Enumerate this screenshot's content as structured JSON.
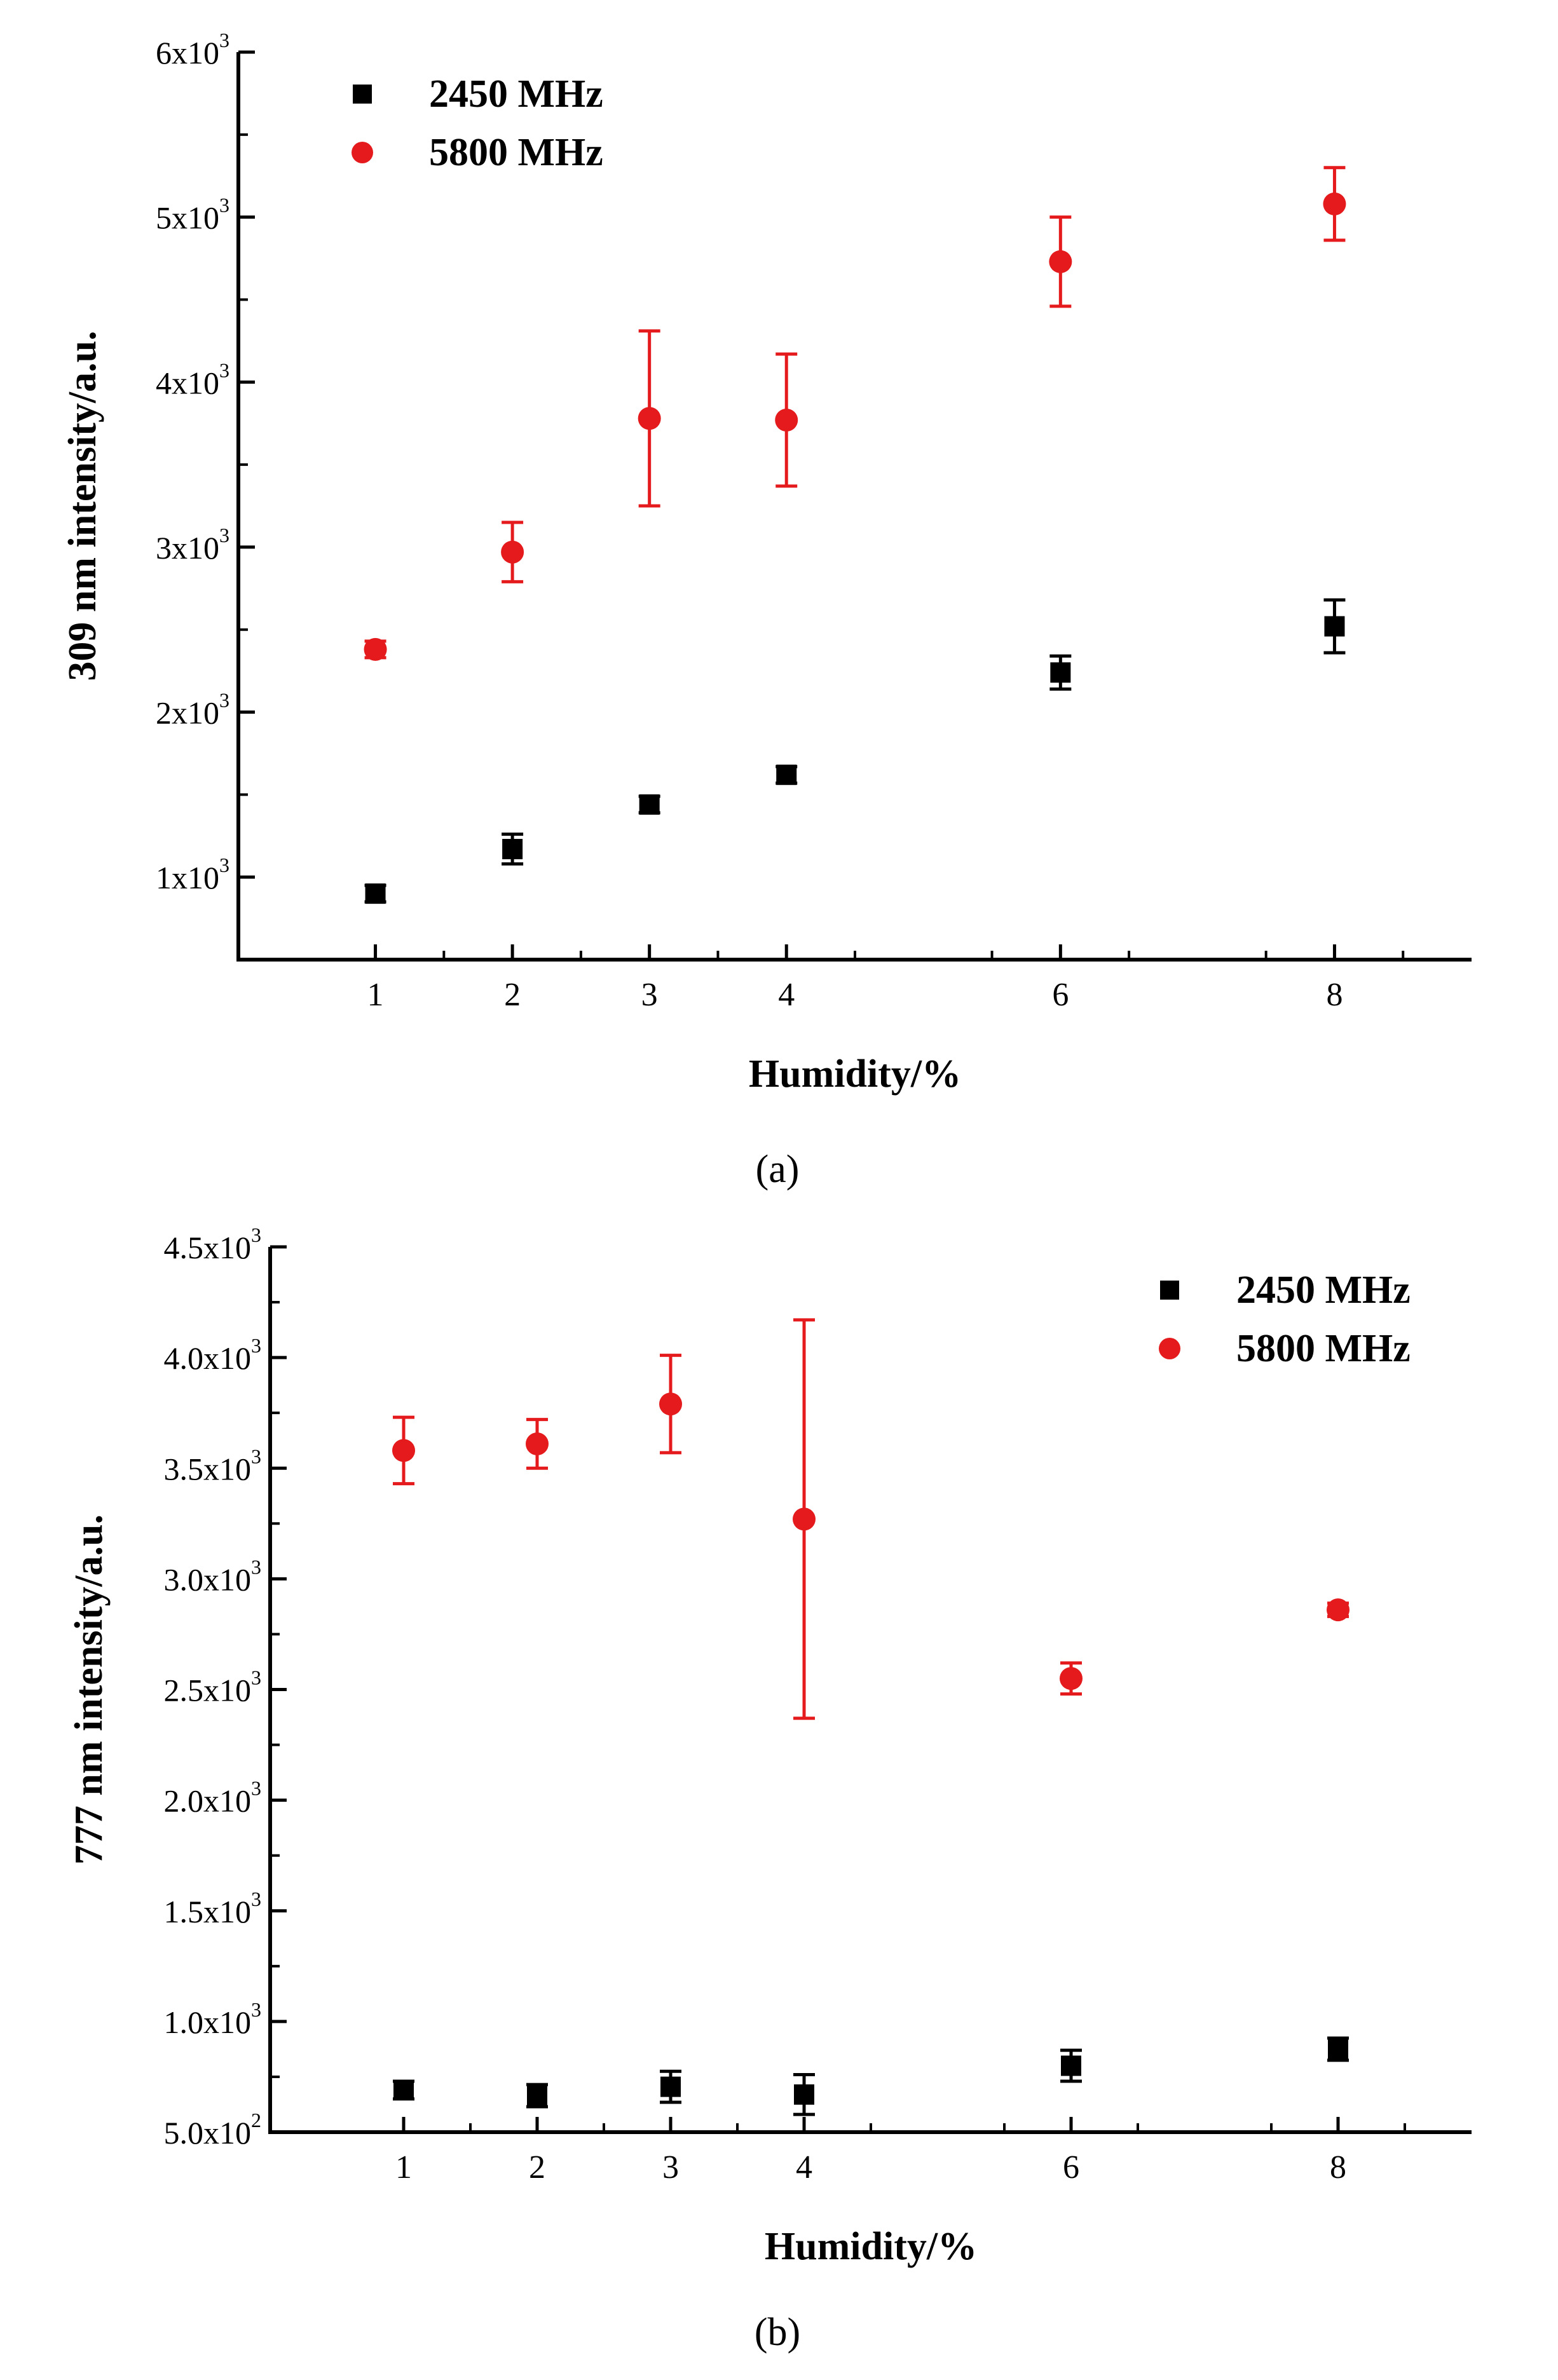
{
  "figure": {
    "panel_a_caption": "(a)",
    "panel_b_caption": "(b)"
  },
  "colors": {
    "series_2450": "#000000",
    "series_5800": "#e41a1c",
    "axis": "#000000"
  },
  "chart_data": [
    {
      "panel": "a",
      "type": "scatter",
      "title": "",
      "xlabel": "Humidity/%",
      "ylabel": "309 nm intensity/a.u.",
      "xlim": [
        0,
        9
      ],
      "ylim": [
        500,
        6000
      ],
      "x_ticks": [
        1,
        2,
        3,
        4,
        6,
        8
      ],
      "y_ticks": [
        {
          "value": 1000,
          "mantissa": "1",
          "exp": "3"
        },
        {
          "value": 2000,
          "mantissa": "2",
          "exp": "3"
        },
        {
          "value": 3000,
          "mantissa": "3",
          "exp": "3"
        },
        {
          "value": 4000,
          "mantissa": "4",
          "exp": "3"
        },
        {
          "value": 5000,
          "mantissa": "5",
          "exp": "3"
        },
        {
          "value": 6000,
          "mantissa": "6",
          "exp": "3"
        }
      ],
      "legend_position": "top-left",
      "series": [
        {
          "name": "2450 MHz",
          "marker": "square",
          "color": "#000000",
          "x": [
            1,
            2,
            3,
            4,
            6,
            8
          ],
          "y": [
            900,
            1170,
            1440,
            1620,
            2240,
            2520
          ],
          "err": [
            50,
            90,
            50,
            50,
            100,
            160
          ]
        },
        {
          "name": "5800 MHz",
          "marker": "circle",
          "color": "#e41a1c",
          "x": [
            1,
            2,
            3,
            4,
            6,
            8
          ],
          "y": [
            2380,
            2970,
            3780,
            3770,
            4730,
            5080
          ],
          "err": [
            50,
            180,
            530,
            400,
            270,
            220
          ]
        }
      ]
    },
    {
      "panel": "b",
      "type": "scatter",
      "title": "",
      "xlabel": "Humidity/%",
      "ylabel": "777 nm intensity/a.u.",
      "xlim": [
        0,
        9
      ],
      "ylim": [
        500,
        4500
      ],
      "x_ticks": [
        1,
        2,
        3,
        4,
        6,
        8
      ],
      "y_ticks": [
        {
          "value": 500,
          "mantissa": "5.0",
          "exp": "2"
        },
        {
          "value": 1000,
          "mantissa": "1.0",
          "exp": "3"
        },
        {
          "value": 1500,
          "mantissa": "1.5",
          "exp": "3"
        },
        {
          "value": 2000,
          "mantissa": "2.0",
          "exp": "3"
        },
        {
          "value": 2500,
          "mantissa": "2.5",
          "exp": "3"
        },
        {
          "value": 3000,
          "mantissa": "3.0",
          "exp": "3"
        },
        {
          "value": 3500,
          "mantissa": "3.5",
          "exp": "3"
        },
        {
          "value": 4000,
          "mantissa": "4.0",
          "exp": "3"
        },
        {
          "value": 4500,
          "mantissa": "4.5",
          "exp": "3"
        }
      ],
      "legend_position": "top-right",
      "series": [
        {
          "name": "2450 MHz",
          "marker": "square",
          "color": "#000000",
          "x": [
            1,
            2,
            3,
            4,
            6,
            8
          ],
          "y": [
            690,
            665,
            705,
            670,
            800,
            875
          ],
          "err": [
            40,
            50,
            70,
            90,
            70,
            50
          ]
        },
        {
          "name": "5800 MHz",
          "marker": "circle",
          "color": "#e41a1c",
          "x": [
            1,
            2,
            3,
            4,
            6,
            8
          ],
          "y": [
            3580,
            3610,
            3790,
            3270,
            2550,
            2860
          ],
          "err": [
            150,
            110,
            220,
            900,
            70,
            30
          ]
        }
      ]
    }
  ]
}
